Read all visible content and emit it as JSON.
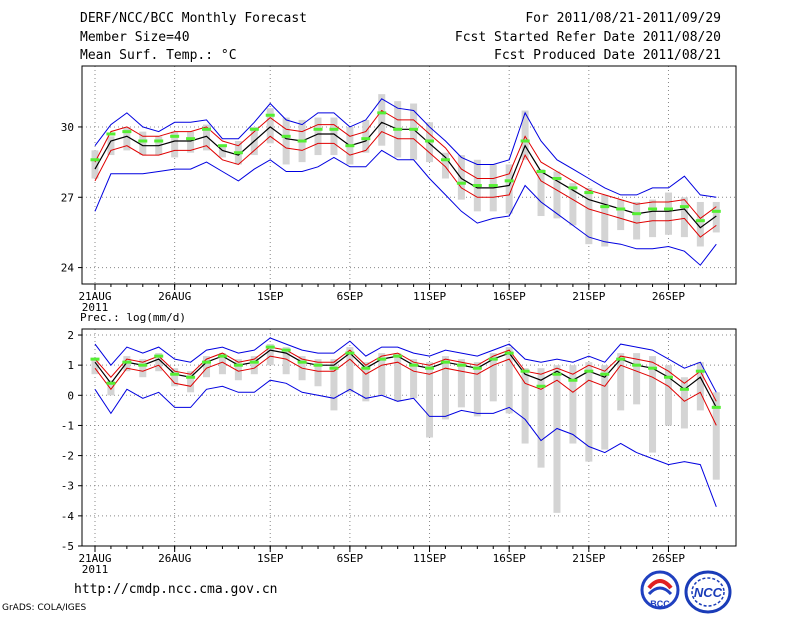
{
  "header": {
    "title": "DERF/NCC/BCC Monthly Forecast",
    "member_size": "Member Size=40",
    "variable": "Mean Surf. Temp.: °C",
    "period": "For 2011/08/21-2011/09/29",
    "started": "Fcst Started Refer Date 2011/08/20",
    "produced": "Fcst Produced Date 2011/08/21"
  },
  "footer": {
    "url": "http://cmdp.ncc.cma.gov.cn",
    "credit": "GrADS: COLA/IGES",
    "logo_left_text": "BCC",
    "logo_right_text": "NCC"
  },
  "colors": {
    "mean": "#000000",
    "inner_spread": "#e00000",
    "outer_spread": "#0000e0",
    "box": "#d4d4d4",
    "median": "#55ee33",
    "grid": "#888888"
  },
  "chart_data": [
    {
      "type": "line",
      "title": "Mean Surf. Temp.: °C",
      "xlabel": "",
      "ylabel": "",
      "ylim": [
        23.3,
        32.6
      ],
      "yticks": [
        "24",
        "27",
        "30"
      ],
      "xtick_labels": [
        "21AUG",
        "26AUG",
        "1SEP",
        "6SEP",
        "11SEP",
        "16SEP",
        "21SEP",
        "26SEP"
      ],
      "xtick_index": [
        0,
        5,
        11,
        16,
        21,
        26,
        31,
        36
      ],
      "year_label": "2011",
      "series": [
        {
          "name": "mean",
          "values": [
            28.2,
            29.4,
            29.6,
            29.2,
            29.2,
            29.4,
            29.4,
            29.6,
            29.0,
            28.8,
            29.4,
            30.0,
            29.5,
            29.4,
            29.7,
            29.7,
            29.2,
            29.4,
            30.2,
            29.9,
            29.9,
            29.3,
            28.7,
            27.8,
            27.4,
            27.4,
            27.5,
            29.2,
            28.1,
            27.7,
            27.3,
            26.9,
            26.7,
            26.5,
            26.3,
            26.4,
            26.4,
            26.5,
            25.7,
            26.2
          ]
        },
        {
          "name": "inner_upper",
          "values": [
            28.5,
            29.8,
            30.0,
            29.6,
            29.6,
            29.8,
            29.8,
            30.0,
            29.4,
            29.2,
            29.8,
            30.4,
            29.9,
            29.8,
            30.1,
            30.1,
            29.6,
            29.8,
            30.7,
            30.3,
            30.3,
            29.7,
            29.1,
            28.2,
            27.8,
            27.8,
            28.0,
            29.6,
            28.5,
            28.1,
            27.7,
            27.3,
            27.1,
            26.9,
            26.7,
            26.8,
            26.8,
            26.9,
            26.1,
            26.6
          ]
        },
        {
          "name": "inner_lower",
          "values": [
            27.7,
            29.0,
            29.2,
            28.8,
            28.8,
            29.0,
            29.0,
            29.2,
            28.6,
            28.4,
            29.0,
            29.6,
            29.1,
            29.0,
            29.3,
            29.3,
            28.8,
            29.0,
            29.8,
            29.5,
            29.5,
            28.9,
            28.3,
            27.4,
            27.0,
            27.0,
            27.1,
            28.8,
            27.7,
            27.3,
            26.9,
            26.5,
            26.3,
            26.1,
            25.9,
            26.0,
            26.0,
            26.1,
            25.3,
            25.8
          ]
        },
        {
          "name": "outer_upper",
          "values": [
            29.2,
            30.1,
            30.6,
            30.0,
            29.8,
            30.2,
            30.2,
            30.3,
            29.5,
            29.5,
            30.2,
            31.0,
            30.3,
            30.1,
            30.6,
            30.6,
            30.0,
            30.3,
            31.2,
            30.8,
            30.7,
            30.0,
            29.4,
            28.7,
            28.4,
            28.4,
            28.6,
            30.6,
            29.4,
            28.6,
            28.2,
            27.8,
            27.4,
            27.1,
            27.1,
            27.4,
            27.4,
            27.9,
            27.1,
            27.0
          ]
        },
        {
          "name": "outer_lower",
          "values": [
            26.4,
            28.0,
            28.0,
            28.0,
            28.1,
            28.2,
            28.2,
            28.5,
            28.1,
            27.7,
            28.2,
            28.6,
            28.1,
            28.1,
            28.3,
            28.7,
            28.3,
            28.3,
            29.0,
            28.6,
            28.6,
            27.8,
            27.1,
            26.4,
            25.9,
            26.1,
            26.2,
            27.5,
            26.8,
            26.3,
            25.8,
            25.3,
            25.1,
            25.0,
            24.8,
            24.8,
            24.9,
            24.7,
            24.1,
            25.0
          ]
        },
        {
          "name": "box_high",
          "values": [
            29.0,
            29.6,
            30.0,
            29.8,
            29.6,
            29.8,
            29.8,
            30.1,
            29.2,
            29.4,
            30.0,
            30.8,
            30.4,
            30.3,
            30.4,
            30.4,
            30.0,
            30.3,
            31.4,
            31.1,
            31.0,
            30.2,
            28.9,
            28.8,
            28.6,
            28.4,
            28.4,
            30.7,
            28.2,
            28.1,
            27.6,
            27.4,
            27.1,
            26.9,
            26.8,
            26.9,
            27.2,
            27.0,
            26.8,
            26.8
          ]
        },
        {
          "name": "box_low",
          "values": [
            27.8,
            28.8,
            29.0,
            28.8,
            28.8,
            28.7,
            28.9,
            29.0,
            28.7,
            28.4,
            28.8,
            29.3,
            28.4,
            28.5,
            28.8,
            28.8,
            28.4,
            28.9,
            29.2,
            28.7,
            28.6,
            28.5,
            27.8,
            26.9,
            26.4,
            26.4,
            26.3,
            28.6,
            26.2,
            26.1,
            25.8,
            25.0,
            24.9,
            25.6,
            25.2,
            25.3,
            25.4,
            25.3,
            24.9,
            25.5
          ]
        },
        {
          "name": "median",
          "values": [
            28.6,
            29.7,
            29.8,
            29.4,
            29.4,
            29.6,
            29.5,
            29.9,
            29.2,
            28.9,
            29.9,
            30.5,
            29.6,
            29.4,
            29.9,
            29.9,
            29.2,
            29.5,
            30.6,
            29.9,
            29.9,
            29.4,
            28.6,
            27.6,
            27.5,
            27.5,
            27.7,
            29.4,
            28.1,
            27.8,
            27.4,
            27.2,
            26.6,
            26.5,
            26.3,
            26.5,
            26.5,
            26.6,
            26.0,
            26.4
          ]
        }
      ]
    },
    {
      "type": "line",
      "title": "Prec.: log(mm/d)",
      "xlabel": "",
      "ylabel": "",
      "ylim": [
        -5,
        2.2
      ],
      "yticks": [
        "-5",
        "-4",
        "-3",
        "-2",
        "-1",
        "0",
        "1",
        "2"
      ],
      "xtick_labels": [
        "21AUG",
        "26AUG",
        "1SEP",
        "6SEP",
        "11SEP",
        "16SEP",
        "21SEP",
        "26SEP"
      ],
      "xtick_index": [
        0,
        5,
        11,
        16,
        21,
        26,
        31,
        36
      ],
      "year_label": "2011",
      "series": [
        {
          "name": "mean",
          "values": [
            1.1,
            0.4,
            1.1,
            1.0,
            1.2,
            0.7,
            0.6,
            1.1,
            1.3,
            1.0,
            1.1,
            1.5,
            1.4,
            1.1,
            1.0,
            1.0,
            1.4,
            0.9,
            1.2,
            1.3,
            1.0,
            0.9,
            1.1,
            1.0,
            0.9,
            1.2,
            1.4,
            0.7,
            0.5,
            0.8,
            0.5,
            0.8,
            0.6,
            1.2,
            1.0,
            0.9,
            0.6,
            0.2,
            0.6,
            -0.4
          ]
        },
        {
          "name": "inner_upper",
          "values": [
            1.2,
            0.6,
            1.2,
            1.1,
            1.3,
            0.8,
            0.7,
            1.2,
            1.4,
            1.1,
            1.2,
            1.6,
            1.5,
            1.2,
            1.1,
            1.1,
            1.5,
            1.0,
            1.3,
            1.4,
            1.1,
            1.0,
            1.2,
            1.1,
            1.0,
            1.3,
            1.5,
            0.8,
            0.7,
            0.9,
            0.7,
            1.0,
            0.8,
            1.3,
            1.2,
            1.1,
            0.8,
            0.4,
            0.8,
            -0.2
          ]
        },
        {
          "name": "inner_lower",
          "values": [
            0.9,
            0.2,
            0.9,
            0.8,
            1.0,
            0.4,
            0.3,
            0.9,
            1.1,
            0.8,
            0.9,
            1.3,
            1.2,
            0.9,
            0.8,
            0.8,
            1.2,
            0.7,
            1.0,
            1.1,
            0.8,
            0.7,
            0.9,
            0.8,
            0.7,
            1.0,
            1.2,
            0.4,
            0.2,
            0.5,
            0.1,
            0.5,
            0.3,
            1.0,
            0.8,
            0.6,
            0.3,
            -0.2,
            0.1,
            -1.0
          ]
        },
        {
          "name": "outer_upper",
          "values": [
            1.7,
            1.0,
            1.6,
            1.4,
            1.6,
            1.2,
            1.1,
            1.5,
            1.6,
            1.4,
            1.5,
            1.9,
            1.7,
            1.5,
            1.4,
            1.4,
            1.8,
            1.3,
            1.6,
            1.6,
            1.4,
            1.3,
            1.5,
            1.4,
            1.3,
            1.5,
            1.7,
            1.2,
            1.1,
            1.2,
            1.1,
            1.3,
            1.1,
            1.7,
            1.6,
            1.5,
            1.2,
            0.9,
            1.1,
            0.1
          ]
        },
        {
          "name": "outer_lower",
          "values": [
            0.2,
            -0.6,
            0.2,
            -0.1,
            0.1,
            -0.4,
            -0.4,
            0.2,
            0.3,
            0.1,
            0.1,
            0.5,
            0.4,
            0.1,
            0.0,
            -0.1,
            0.2,
            -0.1,
            0.0,
            -0.2,
            -0.1,
            -0.7,
            -0.7,
            -0.5,
            -0.6,
            -0.6,
            -0.4,
            -0.8,
            -1.5,
            -1.1,
            -1.3,
            -1.7,
            -1.9,
            -1.6,
            -1.9,
            -2.1,
            -2.3,
            -2.2,
            -2.3,
            -3.7
          ]
        },
        {
          "name": "box_high",
          "values": [
            1.2,
            0.5,
            1.3,
            1.2,
            1.4,
            0.9,
            0.8,
            1.3,
            1.4,
            1.2,
            1.3,
            1.7,
            1.6,
            1.3,
            1.2,
            1.2,
            1.6,
            1.1,
            1.4,
            1.4,
            1.2,
            1.1,
            1.3,
            1.2,
            1.1,
            1.4,
            1.6,
            0.9,
            0.9,
            1.0,
            1.0,
            1.1,
            1.0,
            1.4,
            1.4,
            1.3,
            1.0,
            0.6,
            1.1,
            0.1
          ]
        },
        {
          "name": "box_low",
          "values": [
            0.7,
            0.0,
            0.8,
            0.6,
            0.8,
            0.3,
            0.1,
            0.6,
            0.7,
            0.5,
            0.7,
            1.0,
            0.7,
            0.5,
            0.3,
            -0.5,
            0.1,
            -0.2,
            0.0,
            -0.2,
            -0.1,
            -1.4,
            -0.8,
            -0.4,
            -0.7,
            -0.2,
            -0.6,
            -1.6,
            -2.4,
            -3.9,
            -1.6,
            -2.2,
            -1.8,
            -0.5,
            -0.3,
            -1.9,
            -1.0,
            -1.1,
            -0.5,
            -2.8
          ]
        },
        {
          "name": "median",
          "values": [
            1.2,
            0.4,
            1.1,
            1.0,
            1.3,
            0.7,
            0.6,
            1.1,
            1.3,
            1.0,
            1.1,
            1.6,
            1.5,
            1.1,
            1.0,
            0.9,
            1.4,
            0.9,
            1.2,
            1.3,
            1.0,
            0.9,
            1.1,
            1.0,
            0.9,
            1.2,
            1.4,
            0.8,
            0.3,
            0.7,
            0.5,
            0.8,
            0.7,
            1.2,
            1.0,
            0.9,
            0.6,
            0.2,
            0.8,
            -0.4
          ]
        }
      ]
    }
  ]
}
